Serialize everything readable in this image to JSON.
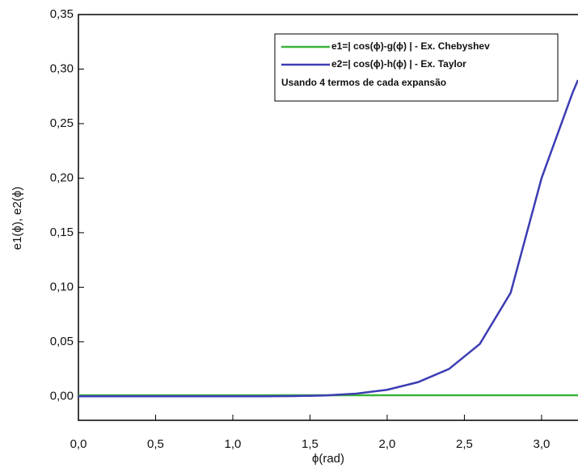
{
  "chart_data": {
    "type": "line",
    "x_label": "ϕ(rad)",
    "y_label": "e1(ϕ), e2(ϕ)",
    "x": [
      0,
      0.2,
      0.4,
      0.6,
      0.8,
      1.0,
      1.2,
      1.4,
      1.6,
      1.8,
      2.0,
      2.2,
      2.4,
      2.6,
      2.8,
      3.0,
      3.2,
      3.236
    ],
    "series": [
      {
        "name": "e1=| cos(ϕ)-g(ϕ) | - Ex. Chebyshev",
        "color": "#3cb43c",
        "values": [
          0.001,
          0.001,
          0.001,
          0.001,
          0.001,
          0.001,
          0.001,
          0.001,
          0.001,
          0.001,
          0.001,
          0.001,
          0.001,
          0.001,
          0.001,
          0.001,
          0.001,
          0.001
        ]
      },
      {
        "name": "e2=| cos(ϕ)-h(ϕ) | - Ex. Taylor",
        "color": "#3c3cb4",
        "values": [
          0,
          0,
          0,
          0,
          0,
          0,
          0,
          0.0002,
          0.0008,
          0.0025,
          0.006,
          0.013,
          0.025,
          0.048,
          0.095,
          0.2,
          0.278,
          0.29
        ]
      }
    ],
    "annotation": "Usando 4 termos de cada expansão",
    "xlim": [
      0,
      3.236
    ],
    "ylim": [
      -0.022,
      0.35
    ],
    "xticks": [
      {
        "value": 0,
        "label": "0,0"
      },
      {
        "value": 0.5,
        "label": "0,5"
      },
      {
        "value": 1.0,
        "label": "1,0"
      },
      {
        "value": 1.5,
        "label": "1,5"
      },
      {
        "value": 2.0,
        "label": "2,0"
      },
      {
        "value": 2.5,
        "label": "2,5"
      },
      {
        "value": 3.0,
        "label": "3,0"
      }
    ],
    "yticks": [
      {
        "value": 0,
        "label": "0,00"
      },
      {
        "value": 0.05,
        "label": "0,05"
      },
      {
        "value": 0.1,
        "label": "0,10"
      },
      {
        "value": 0.15,
        "label": "0,15"
      },
      {
        "value": 0.2,
        "label": "0,20"
      },
      {
        "value": 0.25,
        "label": "0,25"
      },
      {
        "value": 0.3,
        "label": "0,30"
      },
      {
        "value": 0.35,
        "label": "0,35"
      }
    ]
  }
}
